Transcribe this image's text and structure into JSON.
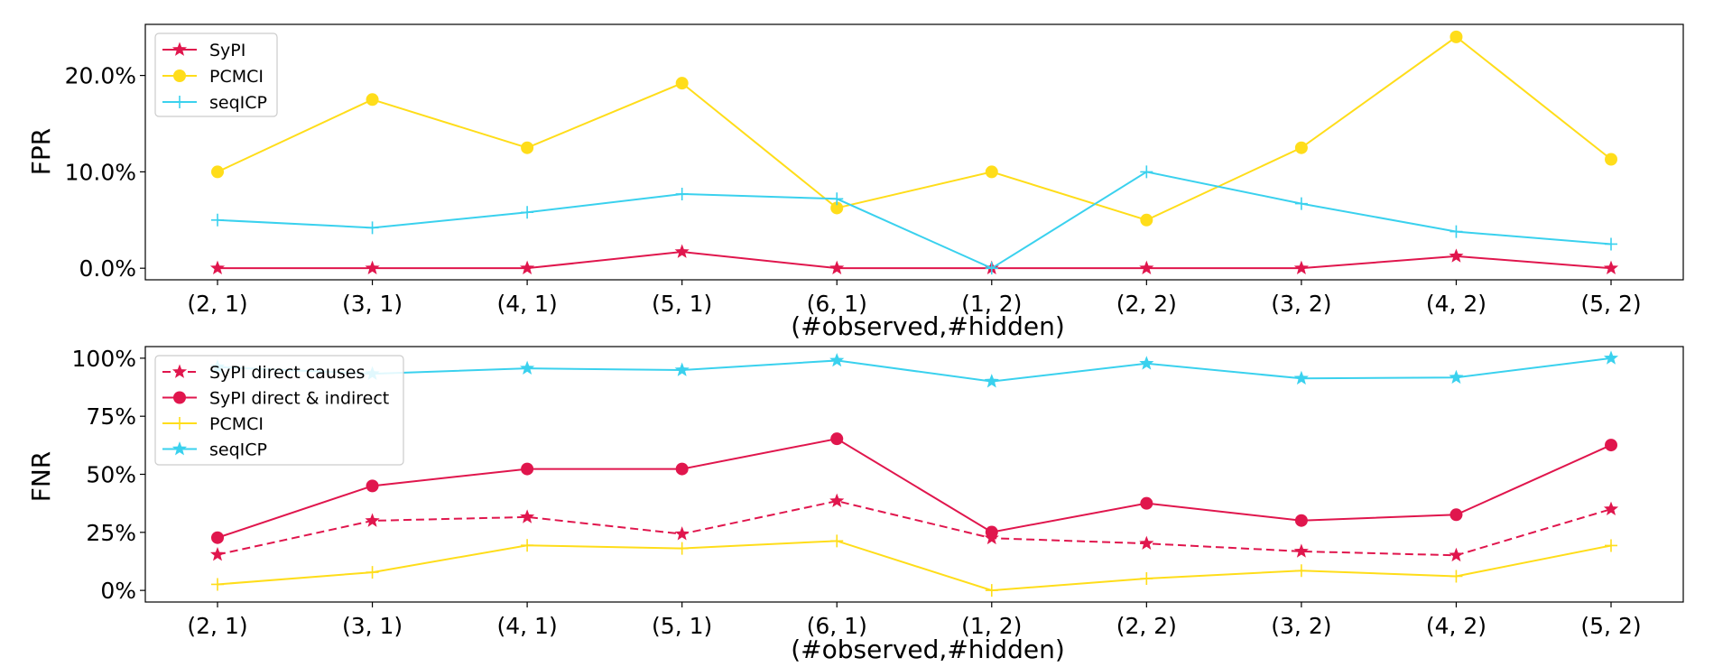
{
  "colors": {
    "crimson": "#e0164d",
    "gold": "#ffdd1a",
    "cyan": "#3ad1ee"
  },
  "chart_data": [
    {
      "type": "line",
      "ylabel": "FPR",
      "xlabel": "(#observed,#hidden)",
      "categories": [
        "(2, 1)",
        "(3, 1)",
        "(4, 1)",
        "(5, 1)",
        "(6, 1)",
        "(1, 2)",
        "(2, 2)",
        "(3, 2)",
        "(4, 2)",
        "(5, 2)"
      ],
      "yticks": [
        0,
        10,
        20
      ],
      "yticklabels": [
        "0.0%",
        "10.0%",
        "20.0%"
      ],
      "ylim": [
        -1.2,
        25.3
      ],
      "grid": false,
      "legend_position": "upper left",
      "series": [
        {
          "name": "SyPI",
          "color_key": "crimson",
          "marker": "star",
          "linestyle": "solid",
          "values": [
            0,
            0,
            0,
            1.7,
            0,
            0,
            0,
            0,
            1.25,
            0
          ]
        },
        {
          "name": "PCMCI",
          "color_key": "gold",
          "marker": "circle",
          "linestyle": "solid",
          "values": [
            10,
            17.5,
            12.5,
            19.2,
            6.25,
            10,
            5,
            12.5,
            24,
            11.3
          ]
        },
        {
          "name": "seqICP",
          "color_key": "cyan",
          "marker": "plus",
          "linestyle": "solid",
          "values": [
            5,
            4.2,
            5.8,
            7.7,
            7.2,
            0,
            10,
            6.7,
            3.8,
            2.5
          ]
        }
      ]
    },
    {
      "type": "line",
      "ylabel": "FNR",
      "xlabel": "(#observed,#hidden)",
      "categories": [
        "(2, 1)",
        "(3, 1)",
        "(4, 1)",
        "(5, 1)",
        "(6, 1)",
        "(1, 2)",
        "(2, 2)",
        "(3, 2)",
        "(4, 2)",
        "(5, 2)"
      ],
      "yticks": [
        0,
        25,
        50,
        75,
        100
      ],
      "yticklabels": [
        "0%",
        "25%",
        "50%",
        "75%",
        "100%"
      ],
      "ylim": [
        -5,
        105
      ],
      "grid": false,
      "legend_position": "upper left",
      "series": [
        {
          "name": "SyPI direct causes",
          "color_key": "crimson",
          "marker": "star",
          "linestyle": "dashed",
          "values": [
            15.4,
            30,
            31.6,
            24.3,
            38.5,
            22.5,
            20.2,
            16.8,
            15.1,
            35
          ]
        },
        {
          "name": "SyPI direct & indirect",
          "color_key": "crimson",
          "marker": "circle",
          "linestyle": "solid",
          "values": [
            22.7,
            45,
            52.3,
            52.3,
            65.3,
            25.1,
            37.5,
            30.1,
            32.6,
            62.6
          ]
        },
        {
          "name": "PCMCI",
          "color_key": "gold",
          "marker": "plus",
          "linestyle": "solid",
          "values": [
            2.6,
            7.8,
            19.4,
            18.1,
            21.3,
            0,
            5.1,
            8.5,
            6.1,
            19.3
          ]
        },
        {
          "name": "seqICP",
          "color_key": "cyan",
          "marker": "star",
          "linestyle": "solid",
          "values": [
            96.2,
            93.3,
            95.6,
            94.9,
            99,
            90,
            97.7,
            91.3,
            91.7,
            100
          ]
        }
      ]
    }
  ]
}
